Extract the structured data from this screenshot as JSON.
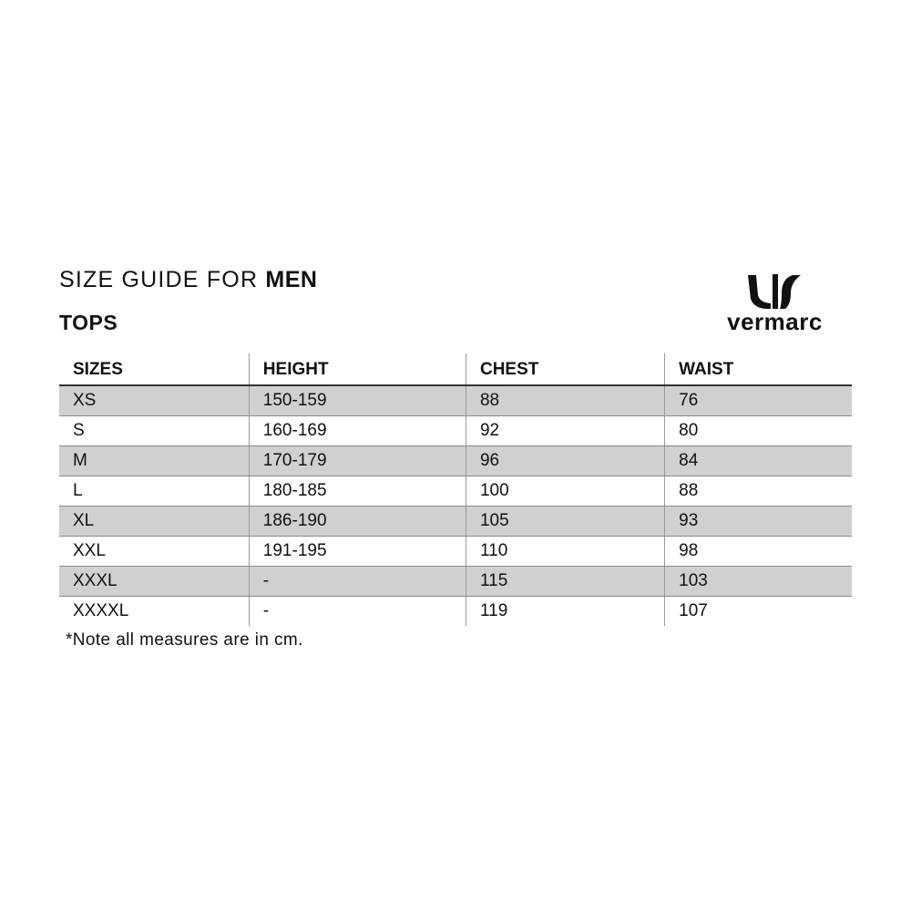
{
  "header": {
    "title_prefix": "SIZE GUIDE FOR",
    "title_emphasis": "MEN",
    "subtitle": "TOPS"
  },
  "logo": {
    "text": "vermarc"
  },
  "table": {
    "columns": [
      "SIZES",
      "HEIGHT",
      "CHEST",
      "WAIST"
    ],
    "rows": [
      [
        "XS",
        "150-159",
        "88",
        "76"
      ],
      [
        "S",
        "160-169",
        "92",
        "80"
      ],
      [
        "M",
        "170-179",
        "96",
        "84"
      ],
      [
        "L",
        "180-185",
        "100",
        "88"
      ],
      [
        "XL",
        "186-190",
        "105",
        "93"
      ],
      [
        "XXL",
        "191-195",
        "110",
        "98"
      ],
      [
        "XXXL",
        "-",
        "115",
        "103"
      ],
      [
        "XXXXL",
        "-",
        "119",
        "107"
      ]
    ]
  },
  "note": "*Note all measures are in cm.",
  "colors": {
    "row_shade": "#d0d0d0",
    "text": "#111111"
  }
}
